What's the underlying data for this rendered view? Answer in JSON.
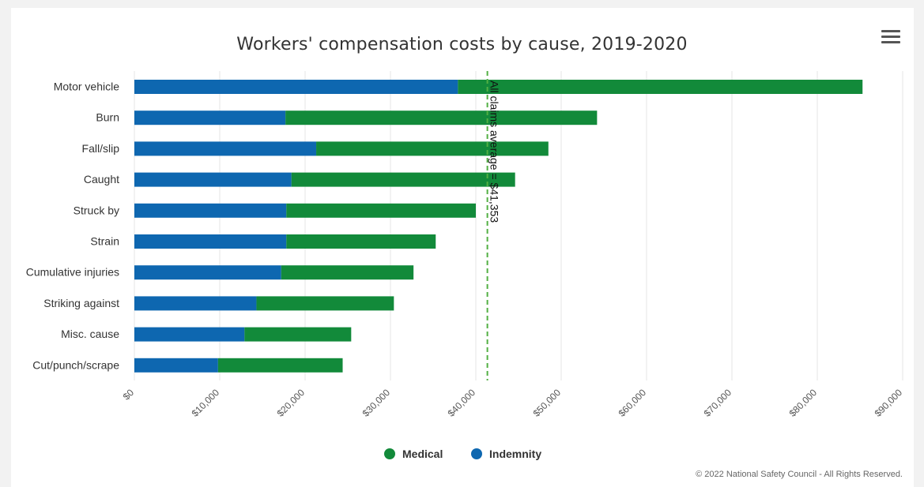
{
  "chart_menu_icon": "hamburger-menu-icon",
  "chart_data": {
    "type": "bar",
    "orientation": "horizontal",
    "stacked": true,
    "title": "Workers' compensation costs by cause, 2019-2020",
    "categories": [
      "Motor vehicle",
      "Burn",
      "Fall/slip",
      "Caught",
      "Struck by",
      "Strain",
      "Cumulative injuries",
      "Striking against",
      "Misc. cause",
      "Cut/punch/scrape"
    ],
    "series": [
      {
        "name": "Indemnity",
        "color": "#0e67b0",
        "values": [
          37900,
          17700,
          21300,
          18400,
          17800,
          17800,
          17200,
          14300,
          12900,
          9800
        ]
      },
      {
        "name": "Medical",
        "color": "#128a3a",
        "values": [
          47400,
          36500,
          27200,
          26200,
          22200,
          17500,
          15500,
          16100,
          12500,
          14600
        ]
      }
    ],
    "xlim": [
      0,
      90000
    ],
    "xticks": [
      "$0",
      "$10,000",
      "$20,000",
      "$30,000",
      "$40,000",
      "$50,000",
      "$60,000",
      "$70,000",
      "$80,000",
      "$90,000"
    ],
    "grid": true,
    "legend": [
      "Medical",
      "Indemnity"
    ],
    "legend_position": "bottom-center",
    "reference_line": {
      "value": 41353,
      "label": "All claims average = $41,353",
      "color": "#52b043"
    },
    "credits": "© 2022 National Safety Council - All Rights Reserved."
  }
}
